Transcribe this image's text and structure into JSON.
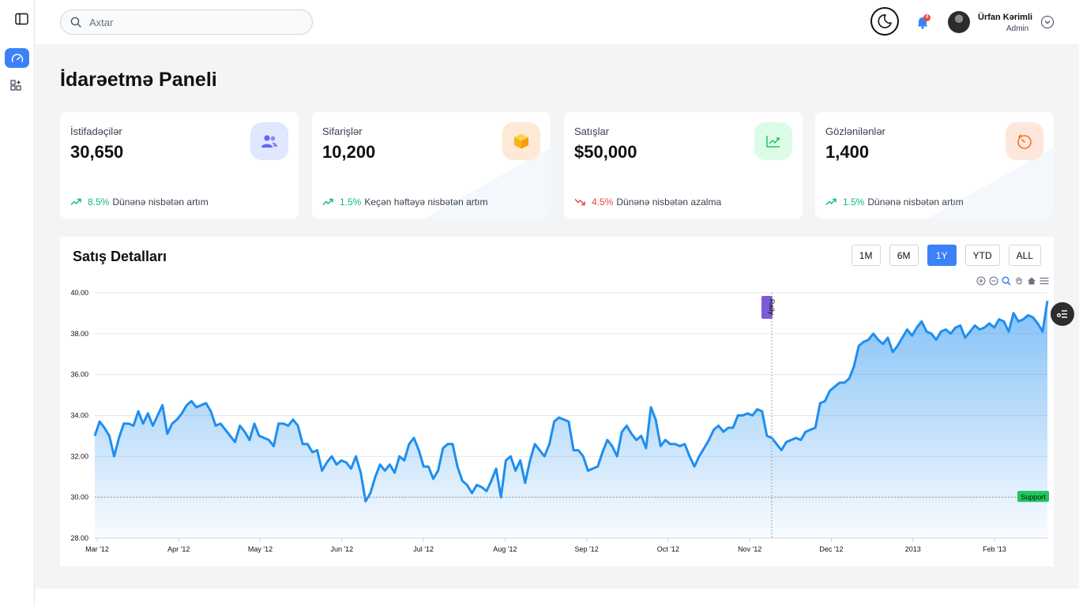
{
  "search": {
    "placeholder": "Axtar"
  },
  "user": {
    "name": "Ürfan Kərimli",
    "role": "Admin",
    "notifications": "4"
  },
  "page": {
    "title": "İdarəetmə Paneli"
  },
  "stats": [
    {
      "label": "İstifadəçilər",
      "value": "30,650",
      "pct": "8.5%",
      "note": "Dünənə nisbətən artım",
      "trend": "up",
      "icon": "users-icon",
      "icon_bg": "#e0e7ff",
      "icon_color": "#6366f1"
    },
    {
      "label": "Sifarişlər",
      "value": "10,200",
      "pct": "1.5%",
      "note": "Keçən həftəyə nisbətən artım",
      "trend": "up",
      "icon": "box-icon",
      "icon_bg": "#fde9d5",
      "icon_color": "#f5b51b"
    },
    {
      "label": "Satışlar",
      "value": "$50,000",
      "pct": "4.5%",
      "note": "Dünənə nisbətən azalma",
      "trend": "down",
      "icon": "chart-line-icon",
      "icon_bg": "#dcfce7",
      "icon_color": "#22c55e"
    },
    {
      "label": "Gözlənilənlər",
      "value": "1,400",
      "pct": "1.5%",
      "note": "Dünənə nisbətən artım",
      "trend": "up",
      "icon": "timer-icon",
      "icon_bg": "#fde7dd",
      "icon_color": "#f97316"
    }
  ],
  "colors": {
    "up": "#10b981",
    "down": "#ef4444",
    "accent": "#3b82f6",
    "series": "#1e8ef0"
  },
  "chart": {
    "title": "Satış Detalları",
    "ranges": [
      {
        "label": "1M",
        "active": false
      },
      {
        "label": "6M",
        "active": false
      },
      {
        "label": "1Y",
        "active": true
      },
      {
        "label": "YTD",
        "active": false
      },
      {
        "label": "ALL",
        "active": false
      }
    ]
  },
  "chart_data": {
    "type": "area",
    "ylim": [
      28,
      40
    ],
    "y_ticks": [
      "28.00",
      "30.00",
      "32.00",
      "34.00",
      "36.00",
      "38.00",
      "40.00"
    ],
    "x_ticks": [
      "Mar '12",
      "Apr '12",
      "May '12",
      "Jun '12",
      "Jul '12",
      "Aug '12",
      "Sep '12",
      "Oct '12",
      "Nov '12",
      "Dec '12",
      "2013",
      "Feb '13"
    ],
    "grid": true,
    "annotations": {
      "x_label": "Rally",
      "y_label": "Support",
      "y_value": 30
    },
    "series": [
      {
        "values": [
          33.0,
          33.7,
          33.4,
          33.0,
          32.0,
          32.9,
          33.6,
          33.6,
          33.5,
          34.2,
          33.6,
          34.1,
          33.5,
          34.0,
          34.5,
          33.1,
          33.6,
          33.8,
          34.1,
          34.5,
          34.7,
          34.4,
          34.5,
          34.6,
          34.2,
          33.5,
          33.6,
          33.3,
          33.0,
          32.7,
          33.5,
          33.2,
          32.8,
          33.6,
          33.0,
          32.9,
          32.8,
          32.5,
          33.6,
          33.6,
          33.5,
          33.8,
          33.5,
          32.6,
          32.6,
          32.2,
          32.3,
          31.3,
          31.7,
          32.0,
          31.6,
          31.8,
          31.7,
          31.4,
          32.0,
          31.2,
          29.8,
          30.2,
          31.0,
          31.6,
          31.3,
          31.6,
          31.2,
          32.0,
          31.8,
          32.6,
          32.9,
          32.3,
          31.5,
          31.5,
          30.9,
          31.3,
          32.4,
          32.6,
          32.6,
          31.5,
          30.8,
          30.6,
          30.2,
          30.6,
          30.5,
          30.3,
          30.8,
          31.4,
          30.0,
          31.8,
          32.0,
          31.3,
          31.8,
          30.7,
          31.8,
          32.6,
          32.3,
          32.0,
          32.6,
          33.7,
          33.9,
          33.8,
          33.7,
          32.3,
          32.3,
          32.0,
          31.3,
          31.4,
          31.5,
          32.2,
          32.8,
          32.5,
          32.0,
          33.2,
          33.5,
          33.1,
          32.8,
          33.0,
          32.4,
          34.4,
          33.8,
          32.5,
          32.8,
          32.6,
          32.6,
          32.5,
          32.6,
          32.0,
          31.5,
          32.0,
          32.4,
          32.8,
          33.3,
          33.5,
          33.2,
          33.4,
          33.4,
          34.0,
          34.0,
          34.1,
          34.0,
          34.3,
          34.2,
          33.0,
          32.9,
          32.6,
          32.3,
          32.7,
          32.8,
          32.9,
          32.8,
          33.2,
          33.3,
          33.4,
          34.6,
          34.7,
          35.2,
          35.4,
          35.6,
          35.6,
          35.8,
          36.4,
          37.4,
          37.6,
          37.7,
          38.0,
          37.7,
          37.5,
          37.8,
          37.1,
          37.4,
          37.8,
          38.2,
          37.9,
          38.3,
          38.6,
          38.1,
          38.0,
          37.7,
          38.1,
          38.2,
          38.0,
          38.3,
          38.4,
          37.8,
          38.1,
          38.4,
          38.2,
          38.3,
          38.5,
          38.3,
          38.7,
          38.6,
          38.1,
          39.0,
          38.6,
          38.7,
          38.9,
          38.8,
          38.5,
          38.1,
          39.6
        ]
      }
    ]
  }
}
